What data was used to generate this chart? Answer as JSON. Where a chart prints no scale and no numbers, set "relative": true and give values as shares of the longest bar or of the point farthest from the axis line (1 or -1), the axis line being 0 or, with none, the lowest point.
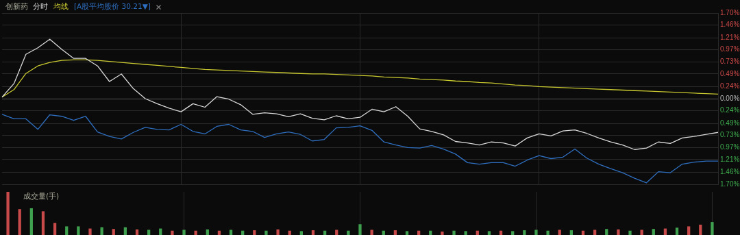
{
  "chart_data": [
    {
      "type": "line",
      "title": "创新药",
      "legend": "top left",
      "grid": true,
      "marker": "none",
      "line_style": "solid",
      "categories": [
        null,
        null,
        null,
        null,
        null,
        null,
        null,
        null,
        null,
        null,
        null,
        null,
        null,
        null,
        null,
        null,
        null,
        null,
        null,
        null,
        null,
        null,
        null,
        null,
        null,
        null,
        null,
        null,
        null,
        null,
        null,
        null,
        null,
        null,
        null,
        null,
        null,
        null,
        null,
        null,
        null,
        null,
        null,
        null,
        null,
        null,
        null,
        null,
        null,
        null,
        null,
        null,
        null,
        null,
        null,
        null,
        null,
        null,
        null,
        null,
        null
      ],
      "ylim": [
        -1.7,
        1.7
      ],
      "yticks": [
        {
          "value": 1.7,
          "label": "1.70%"
        },
        {
          "value": 1.46,
          "label": "1.46%"
        },
        {
          "value": 1.21,
          "label": "1.21%"
        },
        {
          "value": 0.97,
          "label": "0.97%"
        },
        {
          "value": 0.73,
          "label": "0.73%"
        },
        {
          "value": 0.49,
          "label": "0.49%"
        },
        {
          "value": 0.24,
          "label": "0.24%"
        },
        {
          "value": 0,
          "label": "0.00%"
        },
        {
          "value": -0.24,
          "label": "0.24%"
        },
        {
          "value": -0.49,
          "label": "0.49%"
        },
        {
          "value": -0.73,
          "label": "0.73%"
        },
        {
          "value": -0.97,
          "label": "0.97%"
        },
        {
          "value": -1.21,
          "label": "1.21%"
        },
        {
          "value": -1.46,
          "label": "1.46%"
        },
        {
          "value": -1.7,
          "label": "1.70%"
        }
      ],
      "series": [
        {
          "name": "分时",
          "color": "#d8d8d8",
          "values": [
            0.03,
            0.3,
            0.88,
            1.01,
            1.18,
            0.98,
            0.8,
            0.8,
            0.65,
            0.34,
            0.49,
            0.2,
            0.0,
            -0.1,
            -0.19,
            -0.26,
            -0.1,
            -0.17,
            0.04,
            -0.01,
            -0.12,
            -0.31,
            -0.28,
            -0.3,
            -0.36,
            -0.3,
            -0.39,
            -0.42,
            -0.34,
            -0.4,
            -0.37,
            -0.21,
            -0.26,
            -0.16,
            -0.35,
            -0.6,
            -0.65,
            -0.72,
            -0.85,
            -0.88,
            -0.92,
            -0.86,
            -0.88,
            -0.94,
            -0.78,
            -0.7,
            -0.74,
            -0.64,
            -0.62,
            -0.69,
            -0.78,
            -0.86,
            -0.92,
            -1.01,
            -0.98,
            -0.86,
            -0.89,
            -0.78,
            -0.75,
            -0.71,
            -0.67
          ]
        },
        {
          "name": "均线",
          "color": "#c8c830",
          "values": [
            0.03,
            0.18,
            0.5,
            0.65,
            0.72,
            0.76,
            0.77,
            0.77,
            0.76,
            0.74,
            0.72,
            0.7,
            0.68,
            0.66,
            0.64,
            0.62,
            0.6,
            0.58,
            0.57,
            0.56,
            0.55,
            0.54,
            0.53,
            0.52,
            0.51,
            0.5,
            0.49,
            0.49,
            0.48,
            0.47,
            0.46,
            0.45,
            0.43,
            0.42,
            0.41,
            0.39,
            0.38,
            0.37,
            0.35,
            0.34,
            0.32,
            0.31,
            0.29,
            0.27,
            0.26,
            0.24,
            0.23,
            0.22,
            0.21,
            0.2,
            0.19,
            0.18,
            0.17,
            0.16,
            0.15,
            0.14,
            0.13,
            0.12,
            0.11,
            0.1,
            0.09
          ]
        },
        {
          "name": "[A股平均股价 30.21▼]",
          "color": "#2f6fc0",
          "values": [
            -0.31,
            -0.4,
            -0.4,
            -0.61,
            -0.32,
            -0.35,
            -0.43,
            -0.35,
            -0.66,
            -0.75,
            -0.8,
            -0.67,
            -0.57,
            -0.61,
            -0.62,
            -0.51,
            -0.65,
            -0.7,
            -0.55,
            -0.51,
            -0.62,
            -0.65,
            -0.77,
            -0.7,
            -0.66,
            -0.71,
            -0.84,
            -0.81,
            -0.58,
            -0.57,
            -0.54,
            -0.63,
            -0.86,
            -0.92,
            -0.97,
            -0.98,
            -0.93,
            -1.0,
            -1.1,
            -1.27,
            -1.3,
            -1.27,
            -1.27,
            -1.34,
            -1.22,
            -1.13,
            -1.19,
            -1.16,
            -1.0,
            -1.18,
            -1.3,
            -1.39,
            -1.47,
            -1.58,
            -1.67,
            -1.45,
            -1.47,
            -1.3,
            -1.26,
            -1.24,
            -1.24
          ]
        }
      ]
    },
    {
      "type": "bar",
      "title": "成交量(手)",
      "relative": true,
      "grid": "x",
      "categories": [
        null,
        null,
        null,
        null,
        null,
        null,
        null,
        null,
        null,
        null,
        null,
        null,
        null,
        null,
        null,
        null,
        null,
        null,
        null,
        null,
        null,
        null,
        null,
        null,
        null,
        null,
        null,
        null,
        null,
        null,
        null,
        null,
        null,
        null,
        null,
        null,
        null,
        null,
        null,
        null,
        null,
        null,
        null,
        null,
        null,
        null,
        null,
        null,
        null,
        null,
        null,
        null,
        null,
        null,
        null,
        null,
        null,
        null,
        null,
        null,
        null
      ],
      "values": [
        1.0,
        0.6,
        0.62,
        0.55,
        0.28,
        0.2,
        0.2,
        0.15,
        0.18,
        0.14,
        0.18,
        0.13,
        0.12,
        0.15,
        0.1,
        0.12,
        0.1,
        0.13,
        0.1,
        0.12,
        0.1,
        0.11,
        0.1,
        0.13,
        0.1,
        0.09,
        0.11,
        0.1,
        0.12,
        0.1,
        0.25,
        0.12,
        0.1,
        0.11,
        0.09,
        0.1,
        0.1,
        0.08,
        0.1,
        0.09,
        0.1,
        0.09,
        0.1,
        0.09,
        0.11,
        0.12,
        0.1,
        0.12,
        0.11,
        0.1,
        0.12,
        0.14,
        0.13,
        0.1,
        0.12,
        0.14,
        0.15,
        0.17,
        0.2,
        0.24,
        0.3
      ],
      "colors": [
        "#c84a4a",
        "#c84a4a",
        "#3fa14f",
        "#c84a4a",
        "#c84a4a",
        "#3fa14f",
        "#3fa14f",
        "#c84a4a",
        "#3fa14f",
        "#c84a4a",
        "#3fa14f",
        "#c84a4a",
        "#3fa14f",
        "#3fa14f",
        "#c84a4a",
        "#3fa14f",
        "#c84a4a",
        "#3fa14f",
        "#c84a4a",
        "#3fa14f",
        "#3fa14f",
        "#c84a4a",
        "#3fa14f",
        "#c84a4a",
        "#c84a4a",
        "#3fa14f",
        "#c84a4a",
        "#3fa14f",
        "#c84a4a",
        "#3fa14f",
        "#3fa14f",
        "#c84a4a",
        "#3fa14f",
        "#c84a4a",
        "#3fa14f",
        "#c84a4a",
        "#3fa14f",
        "#c84a4a",
        "#3fa14f",
        "#3fa14f",
        "#c84a4a",
        "#3fa14f",
        "#c84a4a",
        "#3fa14f",
        "#3fa14f",
        "#3fa14f",
        "#3fa14f",
        "#c84a4a",
        "#3fa14f",
        "#c84a4a",
        "#c84a4a",
        "#3fa14f",
        "#c84a4a",
        "#3fa14f",
        "#c84a4a",
        "#3fa14f",
        "#c84a4a",
        "#3fa14f",
        "#c84a4a",
        "#c84a4a",
        "#3fa14f"
      ]
    }
  ]
}
